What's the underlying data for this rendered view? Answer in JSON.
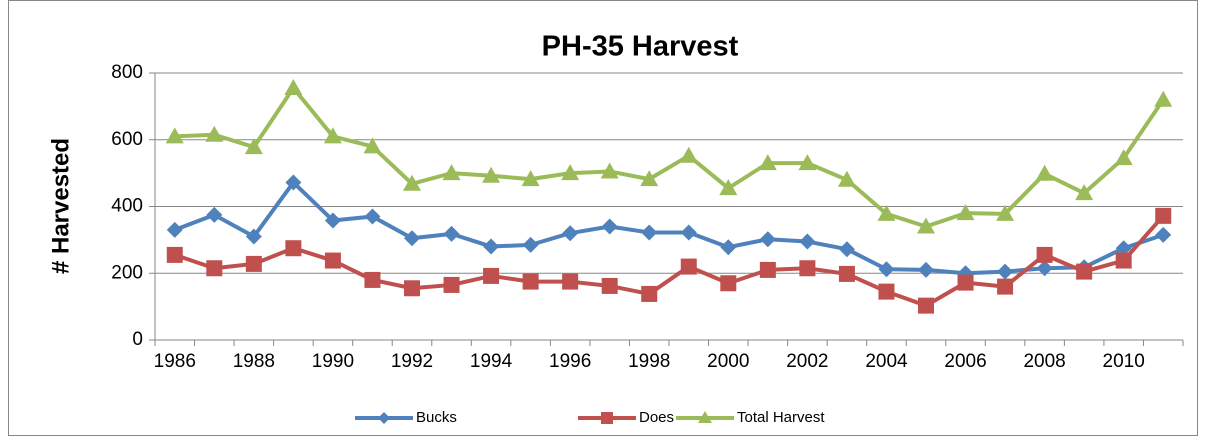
{
  "chart_data": {
    "type": "line",
    "title": "PH-35 Harvest",
    "y_label": "# Harvested",
    "categories": [
      "1986",
      null,
      "1988",
      null,
      "1990",
      null,
      "1992",
      null,
      "1994",
      null,
      "1996",
      null,
      "1998",
      null,
      "2000",
      null,
      "2002",
      null,
      "2004",
      null,
      "2006",
      null,
      "2008",
      null,
      "2010",
      null
    ],
    "series": [
      {
        "name": "Bucks",
        "color": "#4f81bd",
        "marker": "diamond",
        "values": [
          330,
          375,
          310,
          472,
          358,
          370,
          305,
          318,
          280,
          285,
          320,
          340,
          322,
          322,
          278,
          302,
          295,
          272,
          212,
          210,
          200,
          205,
          215,
          218,
          275,
          315
        ]
      },
      {
        "name": "Does",
        "color": "#c0504d",
        "marker": "square",
        "values": [
          255,
          215,
          228,
          275,
          238,
          180,
          155,
          165,
          192,
          175,
          175,
          162,
          138,
          220,
          170,
          210,
          215,
          198,
          145,
          103,
          172,
          160,
          255,
          205,
          238,
          372
        ]
      },
      {
        "name": "Total Harvest",
        "color": "#9bbb59",
        "marker": "triangle",
        "values": [
          610,
          615,
          578,
          755,
          610,
          580,
          468,
          500,
          492,
          482,
          500,
          505,
          482,
          552,
          455,
          530,
          530,
          480,
          378,
          340,
          380,
          378,
          498,
          440,
          545,
          720
        ]
      }
    ],
    "ylim": [
      0,
      800
    ],
    "yticks": [
      0,
      200,
      400,
      600,
      800
    ],
    "grid": true,
    "legend": "bottom"
  }
}
